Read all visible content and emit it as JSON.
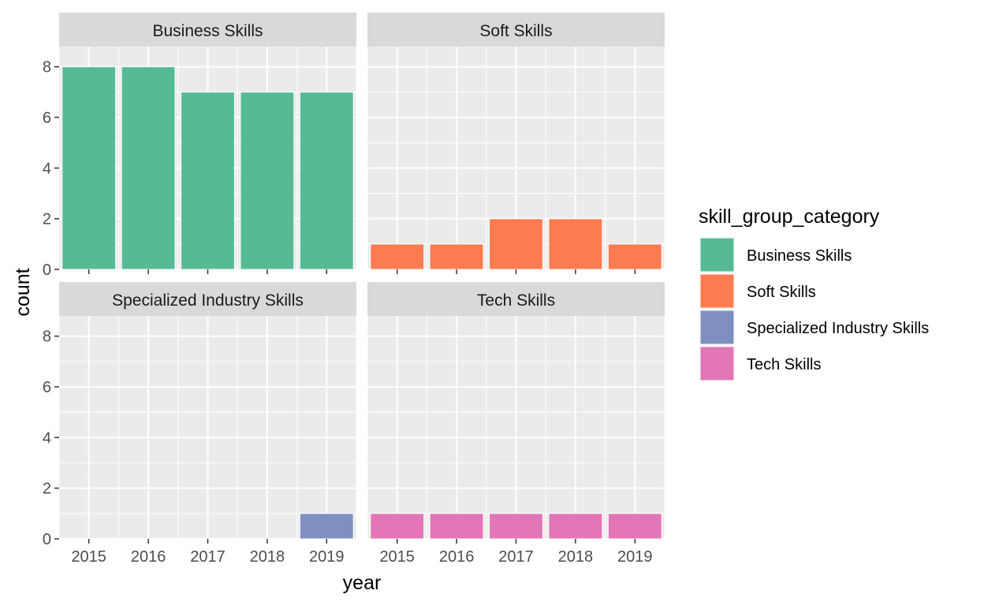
{
  "chart_data": {
    "type": "bar",
    "facet": "wrap",
    "categories": [
      "2015",
      "2016",
      "2017",
      "2018",
      "2019"
    ],
    "xlabel": "year",
    "ylabel": "count",
    "ylim": [
      0,
      8.8
    ],
    "yticks": [
      "0",
      "2",
      "4",
      "6",
      "8"
    ],
    "grid": true,
    "legend": {
      "title": "skill_group_category",
      "position": "right",
      "entries": [
        "Business Skills",
        "Soft Skills",
        "Specialized Industry Skills",
        "Tech Skills"
      ]
    },
    "series": [
      {
        "name": "Business Skills",
        "color": "#56BB94",
        "values": [
          8,
          8,
          7,
          7,
          7
        ]
      },
      {
        "name": "Soft Skills",
        "color": "#FC7B51",
        "values": [
          1,
          1,
          2,
          2,
          1
        ]
      },
      {
        "name": "Specialized Industry Skills",
        "color": "#7F8FC2",
        "values": [
          0,
          0,
          0,
          0,
          1
        ]
      },
      {
        "name": "Tech Skills",
        "color": "#E276B6",
        "values": [
          1,
          1,
          1,
          1,
          1
        ]
      }
    ]
  }
}
